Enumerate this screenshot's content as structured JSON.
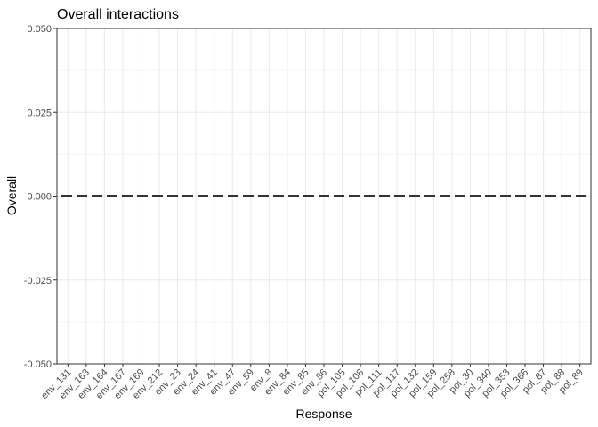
{
  "chart_data": {
    "type": "line",
    "title": "Overall interactions",
    "xlabel": "Response",
    "ylabel": "Overall",
    "categories": [
      "env_131",
      "env_163",
      "env_164",
      "env_167",
      "env_169",
      "env_212",
      "env_23",
      "env_24",
      "env_41",
      "env_47",
      "env_59",
      "env_8",
      "env_84",
      "env_85",
      "env_86",
      "pol_105",
      "pol_108",
      "pol_111",
      "pol_117",
      "pol_132",
      "pol_159",
      "pol_258",
      "pol_30",
      "pol_340",
      "pol_353",
      "pol_366",
      "pol_87",
      "pol_88",
      "pol_89"
    ],
    "ylim": [
      -0.05,
      0.05
    ],
    "yticks": [
      -0.05,
      -0.025,
      0,
      0.025,
      0.05
    ],
    "ytick_labels": [
      "-0.050",
      "-0.025",
      "0.000",
      "0.025",
      "0.050"
    ],
    "reference_line": {
      "y": 0,
      "style": "dashed",
      "color": "#333333"
    },
    "grid": true,
    "legend": "none"
  }
}
